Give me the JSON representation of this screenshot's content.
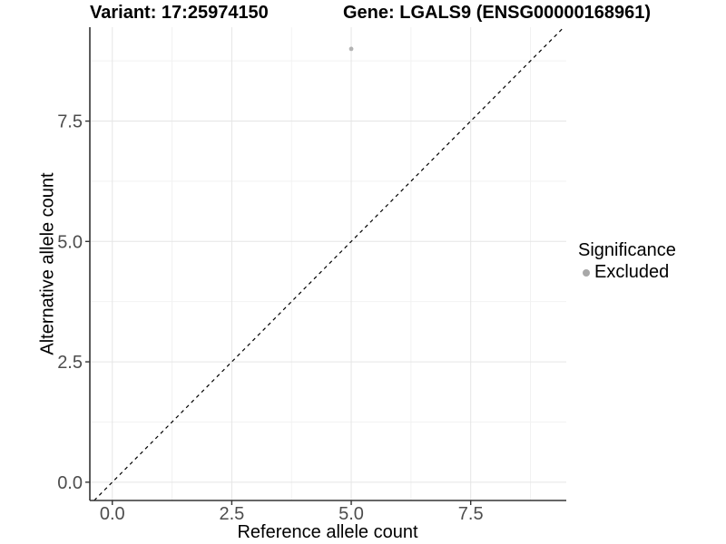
{
  "titles": {
    "variant": "Variant: 17:25974150",
    "gene": "Gene: LGALS9 (ENSG00000168961)"
  },
  "chart_data": {
    "type": "scatter",
    "xlabel": "Reference allele count",
    "ylabel": "Alternative allele count",
    "xlim": [
      -0.47,
      9.5
    ],
    "ylim": [
      -0.38,
      9.45
    ],
    "x_ticks": {
      "values": [
        0.0,
        2.5,
        5.0,
        7.5
      ],
      "labels": [
        "0.0",
        "2.5",
        "5.0",
        "7.5"
      ]
    },
    "y_ticks": {
      "values": [
        0.0,
        2.5,
        5.0,
        7.5
      ],
      "labels": [
        "0.0",
        "2.5",
        "5.0",
        "7.5"
      ]
    },
    "minor_ticks": [
      1.25,
      3.75,
      6.25,
      8.75
    ],
    "grid": "major+minor",
    "series": [
      {
        "name": "Excluded",
        "color": "#b3b3b3",
        "points": [
          {
            "x": 5,
            "y": 9
          }
        ]
      }
    ],
    "reference_line": {
      "equation": "y = x",
      "style": "dashed",
      "color": "#000000"
    },
    "legend": {
      "title": "Significance",
      "position": "right",
      "items": [
        {
          "label": "Excluded",
          "color": "#a8a8a8",
          "marker": "circle"
        }
      ]
    }
  },
  "colors": {
    "axis": "#333333",
    "tick_label": "#4d4d4d",
    "grid_major": "#e5e5e5",
    "grid_minor": "#f2f2f2",
    "background": "#ffffff"
  }
}
